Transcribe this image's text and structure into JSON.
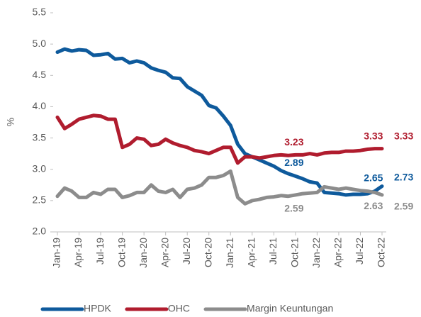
{
  "chart_data": {
    "type": "line",
    "y_label": "%",
    "categories": [
      "Jan-19",
      null,
      null,
      "Apr-19",
      null,
      null,
      "Jul-19",
      null,
      null,
      "Oct-19",
      null,
      null,
      "Jan-20",
      null,
      null,
      "Apr-20",
      null,
      null,
      "Jul-20",
      null,
      null,
      "Oct-20",
      null,
      null,
      "Jan-21",
      null,
      null,
      "Apr-21",
      null,
      null,
      "Jul-21",
      null,
      null,
      "Oct-21",
      null,
      null,
      "Jan-22",
      null,
      null,
      "Apr-22",
      null,
      null,
      "Jul-22",
      null,
      null,
      "Oct-22"
    ],
    "ylim": [
      2.0,
      5.5
    ],
    "yticks": [
      {
        "value": 2.0,
        "label": "2.0"
      },
      {
        "value": 2.5,
        "label": "2.5"
      },
      {
        "value": 3.0,
        "label": "3.0"
      },
      {
        "value": 3.5,
        "label": "3.5"
      },
      {
        "value": 4.0,
        "label": "4.0"
      },
      {
        "value": 4.5,
        "label": "4.5"
      },
      {
        "value": 5.0,
        "label": "5.0"
      },
      {
        "value": 5.5,
        "label": "5.5"
      }
    ],
    "legend": "bottom",
    "series": [
      {
        "name": "HPDK",
        "color": "#0e5a9c",
        "labeled_points": [
          33,
          44,
          45
        ],
        "values": [
          4.87,
          4.92,
          4.89,
          4.91,
          4.9,
          4.82,
          4.83,
          4.85,
          4.76,
          4.77,
          4.7,
          4.73,
          4.7,
          4.62,
          4.58,
          4.55,
          4.46,
          4.45,
          4.32,
          4.25,
          4.18,
          4.02,
          3.98,
          3.85,
          3.7,
          3.4,
          3.25,
          3.2,
          3.15,
          3.1,
          3.05,
          2.98,
          2.93,
          2.89,
          2.85,
          2.8,
          2.78,
          2.63,
          2.62,
          2.61,
          2.59,
          2.6,
          2.6,
          2.61,
          2.65,
          2.73
        ]
      },
      {
        "name": "OHC",
        "color": "#b01c2e",
        "labeled_points": [
          33,
          44,
          45
        ],
        "values": [
          3.83,
          3.65,
          3.72,
          3.8,
          3.83,
          3.86,
          3.85,
          3.8,
          3.8,
          3.35,
          3.4,
          3.5,
          3.48,
          3.38,
          3.4,
          3.48,
          3.42,
          3.38,
          3.35,
          3.3,
          3.28,
          3.25,
          3.3,
          3.35,
          3.35,
          3.1,
          3.2,
          3.2,
          3.18,
          3.2,
          3.22,
          3.23,
          3.22,
          3.23,
          3.23,
          3.25,
          3.23,
          3.26,
          3.27,
          3.27,
          3.29,
          3.29,
          3.3,
          3.32,
          3.33,
          3.33
        ]
      },
      {
        "name": "Margin Keuntungan",
        "color": "#8c8c8c",
        "labeled_points": [
          33,
          44,
          45
        ],
        "values": [
          2.57,
          2.7,
          2.65,
          2.55,
          2.55,
          2.63,
          2.6,
          2.68,
          2.68,
          2.55,
          2.58,
          2.63,
          2.63,
          2.75,
          2.65,
          2.63,
          2.68,
          2.55,
          2.68,
          2.7,
          2.75,
          2.87,
          2.87,
          2.9,
          2.97,
          2.55,
          2.45,
          2.5,
          2.52,
          2.55,
          2.56,
          2.58,
          2.57,
          2.59,
          2.61,
          2.62,
          2.63,
          2.72,
          2.7,
          2.68,
          2.7,
          2.68,
          2.66,
          2.65,
          2.63,
          2.59
        ]
      }
    ]
  }
}
